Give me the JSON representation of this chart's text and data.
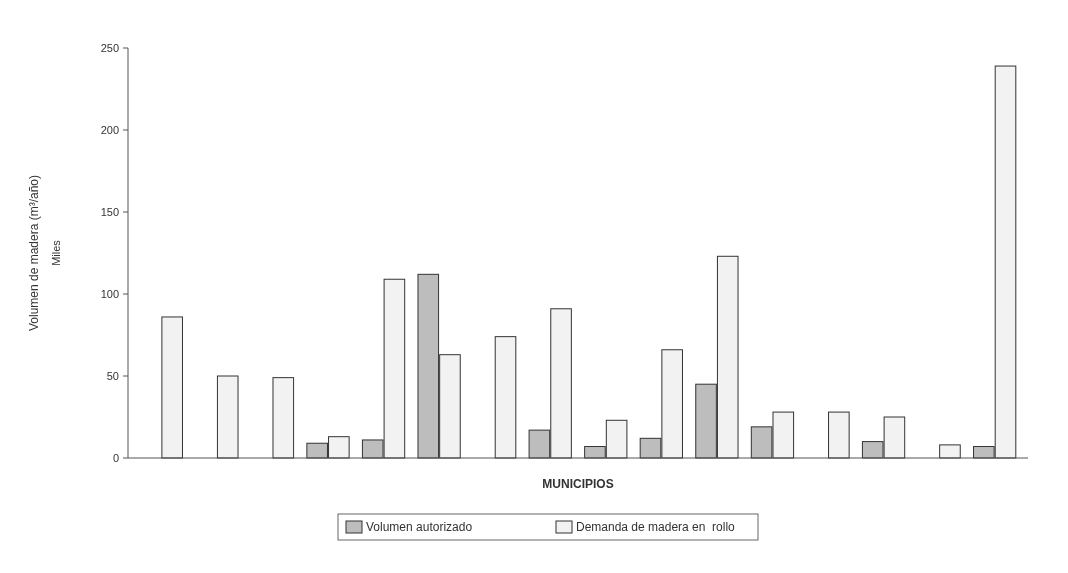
{
  "chart_data": {
    "type": "bar",
    "xlabel": "MUNICIPIOS",
    "ylabel": "Volumen de madera (m³/año)",
    "annotations": [
      "Miles"
    ],
    "categories": [
      null,
      null,
      null,
      null,
      null,
      null,
      null,
      null,
      null,
      null,
      null,
      null,
      null,
      null,
      null,
      null
    ],
    "series": [
      {
        "name": "Volumen autorizado",
        "color": "#bdbdbd",
        "values": [
          0,
          0,
          0,
          9,
          11,
          112,
          0,
          17,
          7,
          12,
          45,
          19,
          0,
          10,
          0,
          7
        ]
      },
      {
        "name": "Demanda de madera en  rollo",
        "color": "#f2f2f2",
        "values": [
          86,
          50,
          49,
          13,
          109,
          63,
          74,
          91,
          23,
          66,
          123,
          28,
          28,
          25,
          8,
          239
        ]
      }
    ],
    "ylim": [
      0,
      250
    ],
    "yticks": [
      0,
      50,
      100,
      150,
      200,
      250
    ],
    "grid": false,
    "legend": "bottom"
  }
}
